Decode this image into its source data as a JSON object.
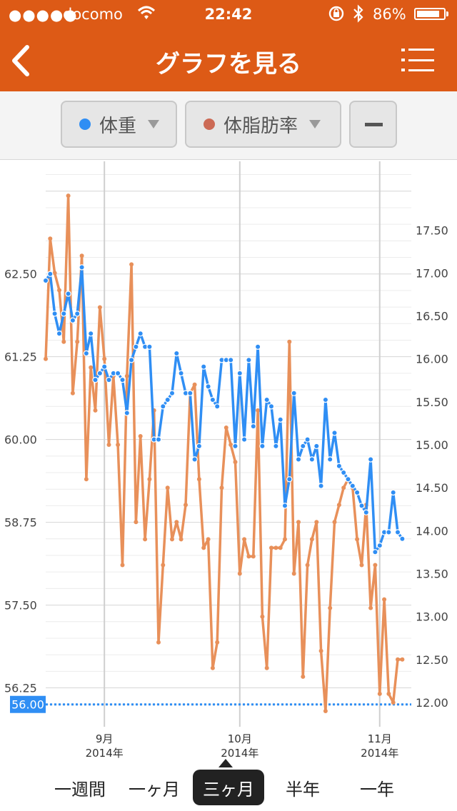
{
  "status_bar": {
    "signal": "●●●●●",
    "carrier": "docomo",
    "time": "22:42",
    "battery": "86%",
    "battery_level": 0.86
  },
  "nav": {
    "title": "グラフを見る",
    "back_icon": "chevron-left-icon",
    "menu_icon": "list-menu-icon"
  },
  "selectors": {
    "primary": {
      "label": "体重",
      "color": "#2f8ef4"
    },
    "secondary": {
      "label": "体脂肪率",
      "color": "#cc6a55"
    },
    "remove_icon": "minus-icon"
  },
  "colors": {
    "header": "#dd5a16",
    "weight_line": "#2f8ef4",
    "fat_line": "#e8905a",
    "target_label_bg": "#2f8ef4"
  },
  "chart_data": {
    "type": "line",
    "x_ticks": [
      {
        "label": "9月",
        "year": "2014年",
        "date": "2014-09-01"
      },
      {
        "label": "10月",
        "year": "2014年",
        "date": "2014-10-01"
      },
      {
        "label": "11月",
        "year": "2014年",
        "date": "2014-11-01"
      }
    ],
    "x_range": [
      "2014-08-19",
      "2014-11-08"
    ],
    "y_left": {
      "ticks": [
        "62.50",
        "61.25",
        "60.00",
        "58.75",
        "57.50",
        "56.25"
      ],
      "range": [
        55.9,
        64.2
      ]
    },
    "y_right": {
      "ticks": [
        "17.50",
        "17.00",
        "16.50",
        "16.00",
        "15.50",
        "15.00",
        "14.50",
        "14.00",
        "13.50",
        "13.00",
        "12.50",
        "12.00"
      ],
      "range": [
        11.9,
        18.3
      ]
    },
    "target_line": {
      "value": 56.0,
      "label": "56.00"
    },
    "series": [
      {
        "name": "体重",
        "axis": "left",
        "points": [
          [
            "2014-08-19",
            62.4
          ],
          [
            "2014-08-20",
            62.5
          ],
          [
            "2014-08-21",
            61.9
          ],
          [
            "2014-08-22",
            61.6
          ],
          [
            "2014-08-23",
            61.9
          ],
          [
            "2014-08-24",
            62.2
          ],
          [
            "2014-08-25",
            61.8
          ],
          [
            "2014-08-26",
            61.9
          ],
          [
            "2014-08-27",
            62.6
          ],
          [
            "2014-08-28",
            61.3
          ],
          [
            "2014-08-29",
            61.6
          ],
          [
            "2014-08-30",
            60.9
          ],
          [
            "2014-08-31",
            61.0
          ],
          [
            "2014-09-01",
            61.1
          ],
          [
            "2014-09-02",
            60.9
          ],
          [
            "2014-09-03",
            61.0
          ],
          [
            "2014-09-04",
            61.0
          ],
          [
            "2014-09-05",
            60.9
          ],
          [
            "2014-09-06",
            60.4
          ],
          [
            "2014-09-07",
            61.2
          ],
          [
            "2014-09-08",
            61.4
          ],
          [
            "2014-09-09",
            61.6
          ],
          [
            "2014-09-10",
            61.4
          ],
          [
            "2014-09-11",
            61.4
          ],
          [
            "2014-09-12",
            60.0
          ],
          [
            "2014-09-13",
            60.0
          ],
          [
            "2014-09-14",
            60.5
          ],
          [
            "2014-09-15",
            60.6
          ],
          [
            "2014-09-16",
            60.7
          ],
          [
            "2014-09-17",
            61.3
          ],
          [
            "2014-09-18",
            61.0
          ],
          [
            "2014-09-19",
            60.7
          ],
          [
            "2014-09-20",
            60.7
          ],
          [
            "2014-09-21",
            59.7
          ],
          [
            "2014-09-22",
            59.9
          ],
          [
            "2014-09-23",
            61.1
          ],
          [
            "2014-09-24",
            60.8
          ],
          [
            "2014-09-25",
            60.6
          ],
          [
            "2014-09-26",
            60.5
          ],
          [
            "2014-09-27",
            61.2
          ],
          [
            "2014-09-28",
            61.2
          ],
          [
            "2014-09-29",
            61.2
          ],
          [
            "2014-09-30",
            59.9
          ],
          [
            "2014-10-01",
            61.0
          ],
          [
            "2014-10-02",
            60.0
          ],
          [
            "2014-10-03",
            61.2
          ],
          [
            "2014-10-04",
            60.2
          ],
          [
            "2014-10-05",
            61.4
          ],
          [
            "2014-10-06",
            59.9
          ],
          [
            "2014-10-07",
            60.6
          ],
          [
            "2014-10-08",
            60.5
          ],
          [
            "2014-10-09",
            59.9
          ],
          [
            "2014-10-10",
            60.3
          ],
          [
            "2014-10-11",
            59.0
          ],
          [
            "2014-10-12",
            59.4
          ],
          [
            "2014-10-13",
            60.7
          ],
          [
            "2014-10-14",
            59.7
          ],
          [
            "2014-10-15",
            59.9
          ],
          [
            "2014-10-16",
            60.0
          ],
          [
            "2014-10-17",
            59.7
          ],
          [
            "2014-10-18",
            59.9
          ],
          [
            "2014-10-19",
            59.3
          ],
          [
            "2014-10-20",
            60.6
          ],
          [
            "2014-10-21",
            59.7
          ],
          [
            "2014-10-22",
            60.1
          ],
          [
            "2014-10-23",
            59.6
          ],
          [
            "2014-10-24",
            59.5
          ],
          [
            "2014-10-25",
            59.4
          ],
          [
            "2014-10-26",
            59.3
          ],
          [
            "2014-10-27",
            59.2
          ],
          [
            "2014-10-28",
            59.0
          ],
          [
            "2014-10-29",
            58.9
          ],
          [
            "2014-10-30",
            59.7
          ],
          [
            "2014-10-31",
            58.3
          ],
          [
            "2014-11-01",
            58.4
          ],
          [
            "2014-11-02",
            58.6
          ],
          [
            "2014-11-03",
            58.6
          ],
          [
            "2014-11-04",
            59.2
          ],
          [
            "2014-11-05",
            58.6
          ],
          [
            "2014-11-06",
            58.5
          ]
        ]
      },
      {
        "name": "体脂肪率",
        "axis": "right",
        "points": [
          [
            "2014-08-19",
            16.0
          ],
          [
            "2014-08-20",
            17.4
          ],
          [
            "2014-08-21",
            17.0
          ],
          [
            "2014-08-22",
            16.8
          ],
          [
            "2014-08-23",
            16.2
          ],
          [
            "2014-08-24",
            17.9
          ],
          [
            "2014-08-25",
            15.6
          ],
          [
            "2014-08-26",
            16.2
          ],
          [
            "2014-08-27",
            17.2
          ],
          [
            "2014-08-28",
            14.6
          ],
          [
            "2014-08-29",
            15.9
          ],
          [
            "2014-08-30",
            15.4
          ],
          [
            "2014-08-31",
            16.6
          ],
          [
            "2014-09-01",
            16.0
          ],
          [
            "2014-09-02",
            15.0
          ],
          [
            "2014-09-03",
            15.8
          ],
          [
            "2014-09-04",
            15.0
          ],
          [
            "2014-09-05",
            13.6
          ],
          [
            "2014-09-06",
            15.8
          ],
          [
            "2014-09-07",
            17.1
          ],
          [
            "2014-09-08",
            14.1
          ],
          [
            "2014-09-09",
            15.1
          ],
          [
            "2014-09-10",
            13.9
          ],
          [
            "2014-09-11",
            14.6
          ],
          [
            "2014-09-12",
            15.4
          ],
          [
            "2014-09-13",
            12.7
          ],
          [
            "2014-09-14",
            13.6
          ],
          [
            "2014-09-15",
            14.5
          ],
          [
            "2014-09-16",
            13.9
          ],
          [
            "2014-09-17",
            14.1
          ],
          [
            "2014-09-18",
            13.9
          ],
          [
            "2014-09-19",
            14.3
          ],
          [
            "2014-09-20",
            15.6
          ],
          [
            "2014-09-21",
            15.7
          ],
          [
            "2014-09-22",
            14.6
          ],
          [
            "2014-09-23",
            13.8
          ],
          [
            "2014-09-24",
            13.9
          ],
          [
            "2014-09-25",
            12.4
          ],
          [
            "2014-09-26",
            12.7
          ],
          [
            "2014-09-27",
            14.5
          ],
          [
            "2014-09-28",
            15.2
          ],
          [
            "2014-09-29",
            15.0
          ],
          [
            "2014-09-30",
            14.8
          ],
          [
            "2014-10-01",
            13.5
          ],
          [
            "2014-10-02",
            13.9
          ],
          [
            "2014-10-03",
            13.7
          ],
          [
            "2014-10-04",
            13.7
          ],
          [
            "2014-10-05",
            15.4
          ],
          [
            "2014-10-06",
            13.0
          ],
          [
            "2014-10-07",
            12.4
          ],
          [
            "2014-10-08",
            13.8
          ],
          [
            "2014-10-09",
            13.8
          ],
          [
            "2014-10-10",
            13.8
          ],
          [
            "2014-10-11",
            13.9
          ],
          [
            "2014-10-12",
            16.2
          ],
          [
            "2014-10-13",
            13.5
          ],
          [
            "2014-10-14",
            14.1
          ],
          [
            "2014-10-15",
            12.3
          ],
          [
            "2014-10-16",
            13.6
          ],
          [
            "2014-10-17",
            13.9
          ],
          [
            "2014-10-18",
            14.1
          ],
          [
            "2014-10-19",
            12.6
          ],
          [
            "2014-10-20",
            11.9
          ],
          [
            "2014-10-21",
            13.1
          ],
          [
            "2014-10-22",
            14.1
          ],
          [
            "2014-10-23",
            14.3
          ],
          [
            "2014-10-24",
            14.5
          ],
          [
            "2014-10-25",
            14.6
          ],
          [
            "2014-10-26",
            14.5
          ],
          [
            "2014-10-27",
            13.9
          ],
          [
            "2014-10-28",
            13.6
          ],
          [
            "2014-10-29",
            14.3
          ],
          [
            "2014-10-30",
            13.1
          ],
          [
            "2014-10-31",
            13.6
          ],
          [
            "2014-11-01",
            12.1
          ],
          [
            "2014-11-02",
            13.2
          ],
          [
            "2014-11-03",
            12.1
          ],
          [
            "2014-11-04",
            12.0
          ],
          [
            "2014-11-05",
            12.5
          ],
          [
            "2014-11-06",
            12.5
          ]
        ]
      }
    ]
  },
  "period_tabs": [
    {
      "label": "一週間",
      "active": false
    },
    {
      "label": "一ヶ月",
      "active": false
    },
    {
      "label": "三ヶ月",
      "active": true
    },
    {
      "label": "半年",
      "active": false
    },
    {
      "label": "一年",
      "active": false
    }
  ]
}
